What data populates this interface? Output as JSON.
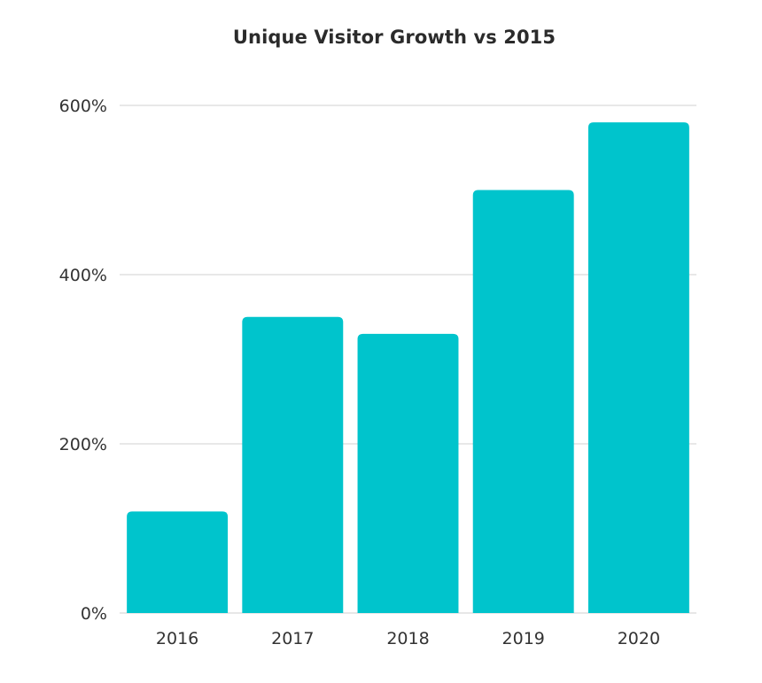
{
  "chart_data": {
    "type": "bar",
    "title": "Unique Visitor Growth vs 2015",
    "xlabel": "",
    "ylabel": "",
    "categories": [
      "2016",
      "2017",
      "2018",
      "2019",
      "2020"
    ],
    "values": [
      120,
      350,
      330,
      500,
      580
    ],
    "ylim": [
      0,
      600
    ],
    "yticks": [
      0,
      200,
      400,
      600
    ],
    "ytick_labels": [
      "0%",
      "200%",
      "400%",
      "600%"
    ],
    "grid": true,
    "legend": "none",
    "bar_color": "#00c4cc"
  }
}
